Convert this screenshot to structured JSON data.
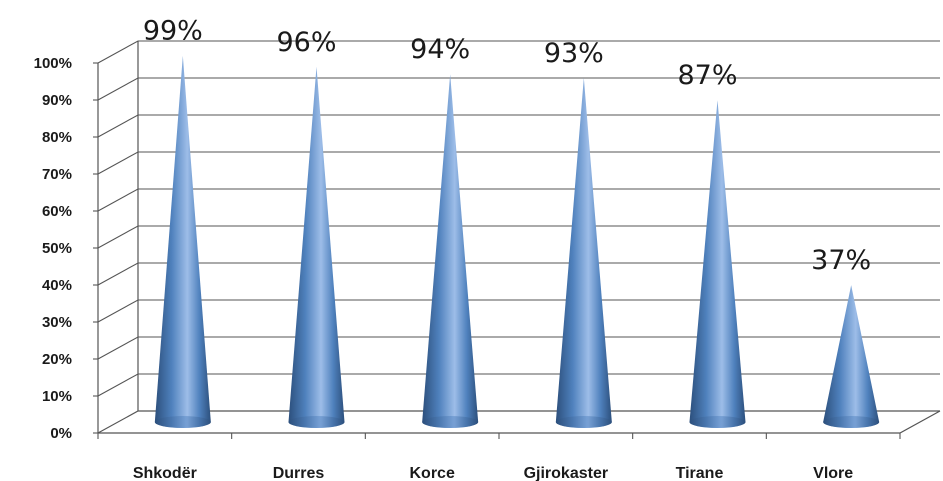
{
  "chart_data": {
    "type": "bar",
    "style": "3d-cone",
    "categories": [
      "Shkodër",
      "Durres",
      "Korce",
      "Gjirokaster",
      "Tirane",
      "Vlore"
    ],
    "values": [
      99,
      96,
      94,
      93,
      87,
      37
    ],
    "data_labels": [
      "99%",
      "96%",
      "94%",
      "93%",
      "87%",
      "37%"
    ],
    "y_ticks": [
      "0%",
      "10%",
      "20%",
      "30%",
      "40%",
      "50%",
      "60%",
      "70%",
      "80%",
      "90%",
      "100%"
    ],
    "ylim": [
      0,
      100
    ],
    "grid": true,
    "legend": "none",
    "colors": {
      "cone_light": "#8fb2e3",
      "cone_mid": "#4f81bd",
      "cone_dark": "#2c4f7c",
      "grid": "#555555",
      "text": "#1a1a1a"
    }
  }
}
